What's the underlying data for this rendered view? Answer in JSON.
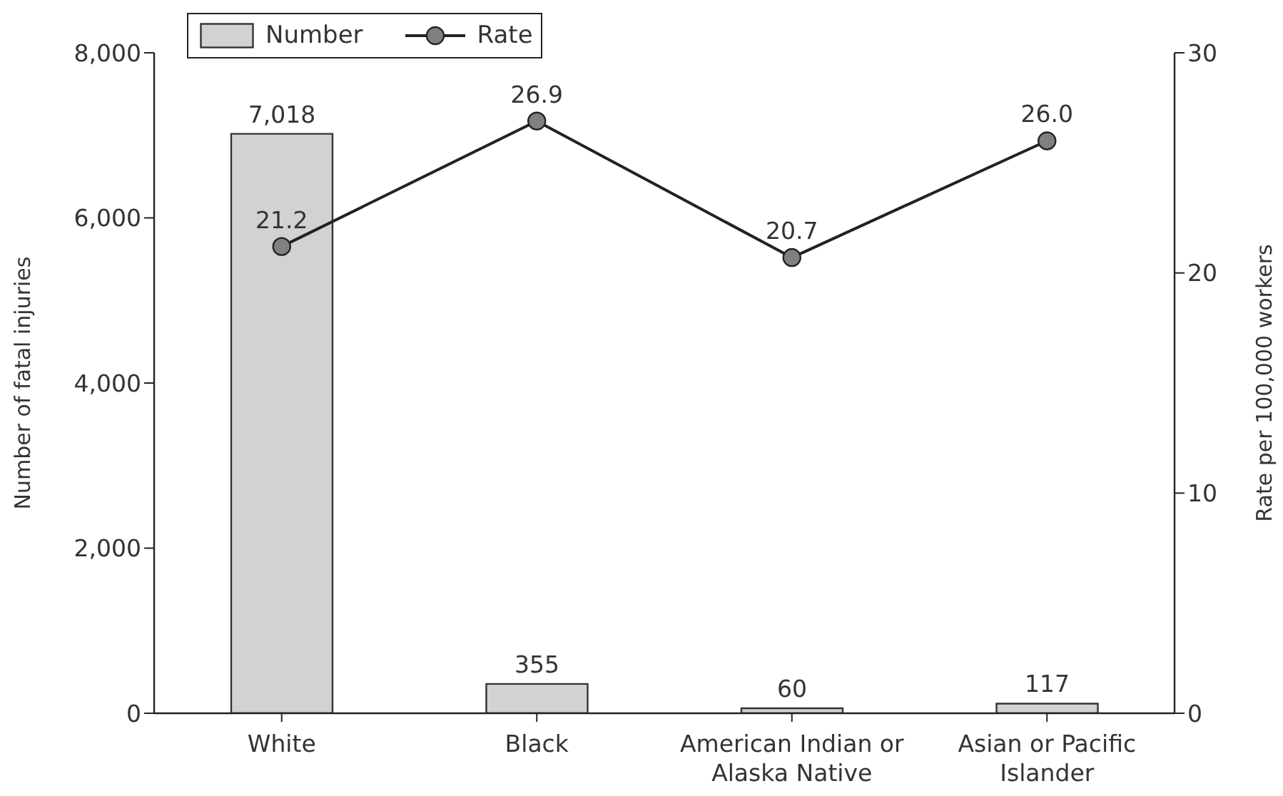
{
  "chart_data": {
    "type": "bar",
    "categories": [
      "White",
      "Black",
      "American Indian or Alaska Native",
      "Asian or Pacific Islander"
    ],
    "series": [
      {
        "name": "Number",
        "color": "#d1d2d4",
        "values": [
          7018,
          355,
          60,
          117
        ],
        "value_labels": [
          "7,018",
          "355",
          "60",
          "117"
        ]
      },
      {
        "name": "Rate",
        "type": "line",
        "axis": "y2",
        "color": "#222222",
        "values": [
          21.2,
          26.9,
          20.7,
          26.0
        ],
        "value_labels": [
          "21.2",
          "26.9",
          "20.7",
          "26.0"
        ]
      }
    ],
    "ylabel": "Number of fatal injuries",
    "y2label": "Rate per 100,000 workers",
    "ylim": [
      0,
      8000
    ],
    "yticks": [
      0,
      {
        "value": 2000,
        "label": "2,000"
      },
      {
        "value": 4000,
        "label": "4,000"
      },
      {
        "value": 6000,
        "label": "6,000"
      },
      {
        "value": 8000,
        "label": "8,000"
      }
    ],
    "y2lim": [
      0,
      30
    ],
    "y2ticks": [
      0,
      10,
      20,
      30
    ],
    "marker": "circle",
    "legend": "top left"
  }
}
